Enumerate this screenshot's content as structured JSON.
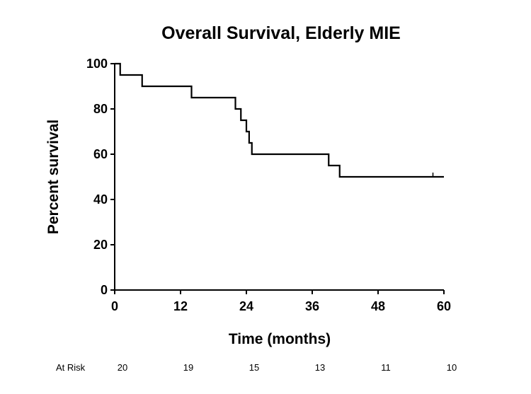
{
  "chart_data": {
    "type": "line",
    "title": "Overall Survival, Elderly MIE",
    "xlabel": "Time (months)",
    "ylabel": "Percent survival",
    "xlim": [
      0,
      60
    ],
    "ylim": [
      0,
      100
    ],
    "xticks": [
      0,
      12,
      24,
      36,
      48,
      60
    ],
    "yticks": [
      0,
      20,
      40,
      60,
      80,
      100
    ],
    "grid": false,
    "series": [
      {
        "step": true,
        "x": [
          0,
          1,
          5,
          14,
          22,
          23,
          24,
          24.5,
          25,
          39,
          40,
          41,
          60
        ],
        "y": [
          100,
          95,
          90,
          85,
          80,
          75,
          70,
          65,
          60,
          55,
          55,
          50,
          50
        ],
        "censor_marks": [
          {
            "x": 58,
            "y": 50
          }
        ]
      }
    ],
    "at_risk": {
      "label": "At Risk",
      "x": [
        0,
        12,
        24,
        36,
        48,
        60
      ],
      "values": [
        "20",
        "19",
        "15",
        "13",
        "11",
        "10"
      ]
    },
    "colors": {
      "line": "#000000",
      "axis": "#000000",
      "background": "#ffffff"
    }
  }
}
